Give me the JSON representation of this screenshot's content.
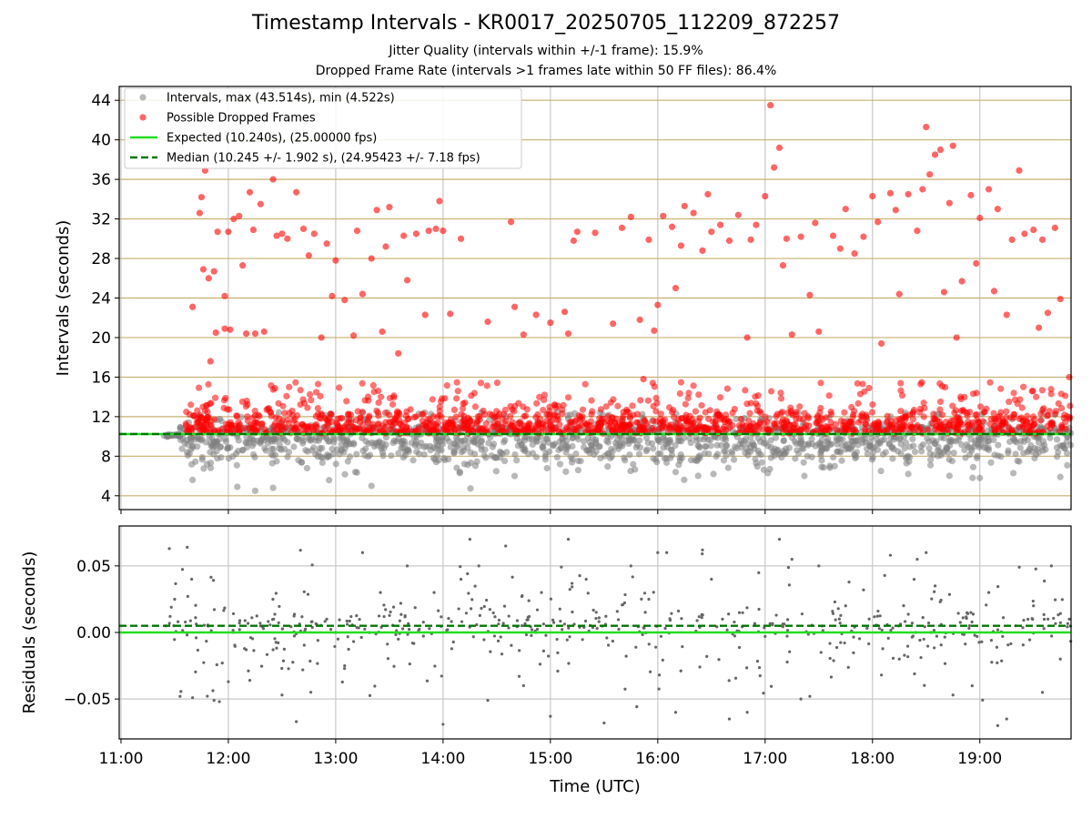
{
  "figure": {
    "title": "Timestamp Intervals - KR0017_20250705_112209_872257",
    "subtitle_1": "Jitter Quality (intervals within +/-1 frame): 15.9%",
    "subtitle_2": "Dropped Frame Rate (intervals >1 frames late within 50 FF files): 86.4%"
  },
  "colors": {
    "intervals": "#808080",
    "dropped": "#ff0000",
    "expected": "#22dd22",
    "median": "#007700",
    "hgrid_top": "#c8b070",
    "grid": "#c8c8c8"
  },
  "chart_data": [
    {
      "type": "scatter",
      "panel": "intervals",
      "ylabel": "Intervals (seconds)",
      "xlabel": "",
      "xlim": [
        "10:59",
        "19:51"
      ],
      "ylim": [
        2.6,
        45.4
      ],
      "yticks": [
        4,
        8,
        12,
        16,
        20,
        24,
        28,
        32,
        36,
        40,
        44
      ],
      "grid": "horizontal",
      "legend_position": "top-left",
      "series": [
        {
          "name": "Intervals, max (43.514s), min (4.522s)",
          "kind": "points",
          "description_range": "dense band 5-12 s from 11:24 to 19:51",
          "band": [
            4.5,
            12.5
          ],
          "sample_points": [
            [
              "11:40",
              5.6
            ],
            [
              "12:05",
              4.9
            ],
            [
              "12:15",
              4.5
            ],
            [
              "12:25",
              4.8
            ],
            [
              "13:20",
              5.0
            ],
            [
              "14:40",
              6.0
            ],
            [
              "16:10",
              6.4
            ],
            [
              "18:20",
              6.2
            ],
            [
              "19:00",
              5.8
            ],
            [
              "19:45",
              5.9
            ]
          ]
        },
        {
          "name": "Possible Dropped Frames",
          "kind": "points",
          "sample_points": [
            [
              "11:40",
              23.1
            ],
            [
              "11:44",
              32.6
            ],
            [
              "11:45",
              34.2
            ],
            [
              "11:46",
              26.9
            ],
            [
              "11:47",
              36.9
            ],
            [
              "11:49",
              26.0
            ],
            [
              "11:50",
              17.6
            ],
            [
              "11:52",
              26.7
            ],
            [
              "11:53",
              20.5
            ],
            [
              "11:54",
              30.7
            ],
            [
              "11:58",
              24.2
            ],
            [
              "11:58",
              20.9
            ],
            [
              "12:00",
              30.7
            ],
            [
              "12:01",
              20.8
            ],
            [
              "12:03",
              32.0
            ],
            [
              "12:06",
              32.3
            ],
            [
              "12:08",
              27.3
            ],
            [
              "12:10",
              20.4
            ],
            [
              "12:12",
              34.7
            ],
            [
              "12:14",
              30.9
            ],
            [
              "12:15",
              20.4
            ],
            [
              "12:18",
              33.5
            ],
            [
              "12:20",
              20.6
            ],
            [
              "12:25",
              36.0
            ],
            [
              "12:27",
              30.3
            ],
            [
              "12:30",
              30.5
            ],
            [
              "12:33",
              30.0
            ],
            [
              "12:38",
              34.7
            ],
            [
              "12:42",
              31.0
            ],
            [
              "12:45",
              28.3
            ],
            [
              "12:48",
              30.5
            ],
            [
              "12:52",
              20.0
            ],
            [
              "12:55",
              29.5
            ],
            [
              "12:58",
              24.2
            ],
            [
              "13:00",
              27.8
            ],
            [
              "13:05",
              23.8
            ],
            [
              "13:10",
              20.2
            ],
            [
              "13:12",
              30.8
            ],
            [
              "13:15",
              24.4
            ],
            [
              "13:20",
              28.0
            ],
            [
              "13:23",
              32.9
            ],
            [
              "13:26",
              20.6
            ],
            [
              "13:28",
              29.2
            ],
            [
              "13:30",
              33.2
            ],
            [
              "13:35",
              18.4
            ],
            [
              "13:38",
              30.3
            ],
            [
              "13:40",
              25.8
            ],
            [
              "13:45",
              30.5
            ],
            [
              "13:50",
              22.3
            ],
            [
              "13:52",
              30.8
            ],
            [
              "13:56",
              31.0
            ],
            [
              "13:58",
              33.8
            ],
            [
              "14:00",
              30.8
            ],
            [
              "14:04",
              22.4
            ],
            [
              "14:10",
              30.0
            ],
            [
              "14:25",
              21.6
            ],
            [
              "14:38",
              31.7
            ],
            [
              "14:40",
              23.1
            ],
            [
              "14:45",
              20.3
            ],
            [
              "14:52",
              22.3
            ],
            [
              "15:00",
              21.5
            ],
            [
              "15:08",
              22.6
            ],
            [
              "15:10",
              20.4
            ],
            [
              "15:13",
              29.8
            ],
            [
              "15:15",
              30.7
            ],
            [
              "15:25",
              30.6
            ],
            [
              "15:35",
              21.4
            ],
            [
              "15:40",
              31.1
            ],
            [
              "15:45",
              32.2
            ],
            [
              "15:50",
              21.8
            ],
            [
              "15:52",
              15.8
            ],
            [
              "15:55",
              29.9
            ],
            [
              "15:58",
              20.7
            ],
            [
              "16:00",
              23.3
            ],
            [
              "16:03",
              32.3
            ],
            [
              "16:08",
              31.2
            ],
            [
              "16:10",
              25.0
            ],
            [
              "16:13",
              29.3
            ],
            [
              "16:15",
              33.3
            ],
            [
              "16:20",
              32.6
            ],
            [
              "16:25",
              28.8
            ],
            [
              "16:28",
              34.5
            ],
            [
              "16:30",
              30.7
            ],
            [
              "16:35",
              31.4
            ],
            [
              "16:40",
              29.8
            ],
            [
              "16:45",
              32.4
            ],
            [
              "16:50",
              20.0
            ],
            [
              "16:52",
              29.9
            ],
            [
              "16:55",
              31.4
            ],
            [
              "17:00",
              34.3
            ],
            [
              "17:03",
              43.5
            ],
            [
              "17:05",
              37.2
            ],
            [
              "17:08",
              39.2
            ],
            [
              "17:10",
              27.3
            ],
            [
              "17:12",
              30.0
            ],
            [
              "17:15",
              20.3
            ],
            [
              "17:20",
              30.2
            ],
            [
              "17:25",
              24.3
            ],
            [
              "17:28",
              31.6
            ],
            [
              "17:30",
              20.6
            ],
            [
              "17:38",
              30.3
            ],
            [
              "17:42",
              29.0
            ],
            [
              "17:45",
              33.0
            ],
            [
              "17:50",
              28.5
            ],
            [
              "17:55",
              30.2
            ],
            [
              "18:00",
              34.3
            ],
            [
              "18:03",
              31.7
            ],
            [
              "18:05",
              19.4
            ],
            [
              "18:10",
              34.6
            ],
            [
              "18:13",
              32.9
            ],
            [
              "18:15",
              24.4
            ],
            [
              "18:20",
              34.5
            ],
            [
              "18:25",
              30.8
            ],
            [
              "18:28",
              35.0
            ],
            [
              "18:30",
              41.3
            ],
            [
              "18:32",
              36.5
            ],
            [
              "18:35",
              38.5
            ],
            [
              "18:38",
              39.0
            ],
            [
              "18:40",
              24.6
            ],
            [
              "18:43",
              33.6
            ],
            [
              "18:45",
              39.4
            ],
            [
              "18:47",
              20.0
            ],
            [
              "18:50",
              25.7
            ],
            [
              "18:55",
              34.4
            ],
            [
              "18:58",
              27.5
            ],
            [
              "19:00",
              32.1
            ],
            [
              "19:05",
              35.0
            ],
            [
              "19:08",
              24.7
            ],
            [
              "19:10",
              33.0
            ],
            [
              "19:15",
              22.3
            ],
            [
              "19:18",
              29.9
            ],
            [
              "19:22",
              36.9
            ],
            [
              "19:25",
              30.5
            ],
            [
              "19:30",
              30.9
            ],
            [
              "19:33",
              21.0
            ],
            [
              "19:35",
              29.9
            ],
            [
              "19:38",
              22.5
            ],
            [
              "19:42",
              31.1
            ],
            [
              "19:45",
              23.9
            ],
            [
              "19:50",
              16.0
            ]
          ],
          "band": [
            10.0,
            15.5
          ]
        }
      ],
      "lines": [
        {
          "name": "Expected (10.240s), (25.00000 fps)",
          "y": 10.24,
          "style": "solid"
        },
        {
          "name": "Median (10.245 +/- 1.902 s), (24.95423 +/- 7.18 fps)",
          "y": 10.245,
          "style": "dashed"
        }
      ]
    },
    {
      "type": "scatter",
      "panel": "residuals",
      "xlabel": "Time (UTC)",
      "ylabel": "Residuals (seconds)",
      "xlim": [
        "10:59",
        "19:51"
      ],
      "ylim": [
        -0.08,
        0.08
      ],
      "yticks": [
        -0.05,
        0.0,
        0.05
      ],
      "ytick_labels": [
        "−0.05",
        "0.00",
        "0.05"
      ],
      "xticks": [
        "11:00",
        "12:00",
        "13:00",
        "14:00",
        "15:00",
        "16:00",
        "17:00",
        "18:00",
        "19:00"
      ],
      "grid": "both",
      "lines": [
        {
          "y": 0.0,
          "style": "solid"
        },
        {
          "y": 0.005,
          "style": "dashed"
        }
      ],
      "sample_points": [
        [
          "11:25",
          0.005
        ],
        [
          "11:27",
          0.063
        ],
        [
          "11:30",
          0.025
        ],
        [
          "11:33",
          -0.048
        ],
        [
          "11:37",
          0.064
        ],
        [
          "11:40",
          -0.049
        ],
        [
          "11:52",
          -0.051
        ],
        [
          "11:55",
          -0.052
        ],
        [
          "12:00",
          -0.037
        ],
        [
          "12:10",
          -0.013
        ],
        [
          "12:12",
          -0.036
        ],
        [
          "12:18",
          0.005
        ],
        [
          "12:25",
          -0.013
        ],
        [
          "12:30",
          -0.047
        ],
        [
          "12:38",
          -0.067
        ],
        [
          "12:55",
          0.01
        ],
        [
          "13:00",
          0.0
        ],
        [
          "13:05",
          -0.025
        ],
        [
          "13:15",
          0.06
        ],
        [
          "13:25",
          0.03
        ],
        [
          "13:35",
          -0.005
        ],
        [
          "13:40",
          0.05
        ],
        [
          "13:55",
          0.03
        ],
        [
          "14:00",
          -0.069
        ],
        [
          "14:10",
          0.04
        ],
        [
          "14:15",
          0.07
        ],
        [
          "14:20",
          0.05
        ],
        [
          "14:25",
          -0.051
        ],
        [
          "14:35",
          0.065
        ],
        [
          "14:45",
          -0.04
        ],
        [
          "14:55",
          0.03
        ],
        [
          "15:00",
          -0.063
        ],
        [
          "15:10",
          0.07
        ],
        [
          "15:20",
          0.04
        ],
        [
          "15:30",
          -0.068
        ],
        [
          "15:45",
          0.05
        ],
        [
          "15:55",
          0.025
        ],
        [
          "16:00",
          0.06
        ],
        [
          "16:05",
          0.06
        ],
        [
          "16:10",
          -0.06
        ],
        [
          "16:25",
          0.062
        ],
        [
          "16:30",
          0.04
        ],
        [
          "16:40",
          -0.065
        ],
        [
          "16:50",
          -0.06
        ],
        [
          "17:00",
          -0.003
        ],
        [
          "17:08",
          0.07
        ],
        [
          "17:15",
          0.055
        ],
        [
          "17:20",
          -0.05
        ],
        [
          "17:25",
          -0.048
        ],
        [
          "17:30",
          0.05
        ],
        [
          "17:45",
          0.02
        ],
        [
          "17:55",
          0.032
        ],
        [
          "18:05",
          -0.032
        ],
        [
          "18:10",
          0.058
        ],
        [
          "18:15",
          -0.02
        ],
        [
          "18:25",
          0.055
        ],
        [
          "18:30",
          0.06
        ],
        [
          "18:35",
          0.035
        ],
        [
          "18:45",
          -0.047
        ],
        [
          "18:55",
          0.015
        ],
        [
          "19:05",
          0.03
        ],
        [
          "19:10",
          -0.07
        ],
        [
          "19:15",
          -0.065
        ],
        [
          "19:20",
          0.005
        ],
        [
          "19:30",
          0.02
        ],
        [
          "19:35",
          -0.045
        ],
        [
          "19:40",
          0.05
        ],
        [
          "19:45",
          -0.02
        ],
        [
          "19:50",
          0.01
        ]
      ]
    }
  ]
}
